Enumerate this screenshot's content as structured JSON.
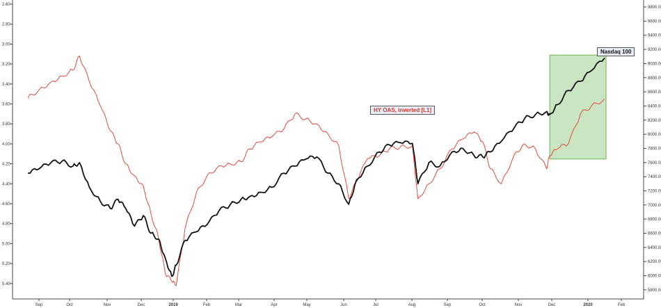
{
  "chart_data": {
    "type": "line",
    "x_ticks": [
      "Sep",
      "Oct",
      "Nov",
      "Dec",
      "2019",
      "Feb",
      "Mar",
      "Apr",
      "May",
      "Jun",
      "Jul",
      "Aug",
      "Sep",
      "Oct",
      "Nov",
      "Dec",
      "2020",
      "Feb"
    ],
    "left_axis": {
      "ticks": [
        "2.60",
        "2.80",
        "3.00",
        "3.20",
        "3.40",
        "3.60",
        "3.80",
        "4.00",
        "4.20",
        "4.40",
        "4.60",
        "4.80",
        "5.00",
        "5.20",
        "5.40"
      ],
      "range": [
        2.6,
        5.52
      ],
      "inverted": true
    },
    "right_axis": {
      "ticks": [
        "9800.00",
        "9600.00",
        "9400.00",
        "9200.00",
        "9000.00",
        "8800.00",
        "8600.00",
        "8400.00",
        "8200.00",
        "8000.00",
        "7800.00",
        "7600.00",
        "7400.00",
        "7200.00",
        "7000.00",
        "6800.00",
        "6600.00",
        "6400.00",
        "6200.00",
        "6000.00",
        "5800.00"
      ],
      "range": [
        5720,
        9840
      ]
    },
    "series": [
      {
        "name": "HY OAS, inverted [L1]",
        "axis": "left",
        "color": "#e8483a",
        "x": [
          "2018-08-15",
          "2018-08-25",
          "2018-09-05",
          "2018-09-15",
          "2018-09-25",
          "2018-10-01",
          "2018-10-10",
          "2018-10-20",
          "2018-10-29",
          "2018-11-05",
          "2018-11-12",
          "2018-11-20",
          "2018-11-28",
          "2018-12-05",
          "2018-12-12",
          "2018-12-18",
          "2018-12-24",
          "2018-12-28",
          "2019-01-05",
          "2019-01-15",
          "2019-01-25",
          "2019-02-05",
          "2019-02-15",
          "2019-02-25",
          "2019-03-05",
          "2019-03-15",
          "2019-03-25",
          "2019-04-05",
          "2019-04-15",
          "2019-04-25",
          "2019-05-05",
          "2019-05-15",
          "2019-05-25",
          "2019-06-03",
          "2019-06-10",
          "2019-06-20",
          "2019-07-01",
          "2019-07-10",
          "2019-07-20",
          "2019-07-31",
          "2019-08-05",
          "2019-08-15",
          "2019-08-25",
          "2019-09-05",
          "2019-09-15",
          "2019-09-25",
          "2019-10-03",
          "2019-10-10",
          "2019-10-20",
          "2019-11-01",
          "2019-11-10",
          "2019-11-20",
          "2019-11-30",
          "2019-12-03",
          "2019-12-10",
          "2019-12-20",
          "2019-12-31",
          "2020-01-10",
          "2020-01-22"
        ],
        "values": [
          3.54,
          3.46,
          3.38,
          3.32,
          3.26,
          3.12,
          3.38,
          3.62,
          3.87,
          4.0,
          4.2,
          4.32,
          4.42,
          4.7,
          4.95,
          5.3,
          5.38,
          5.42,
          4.85,
          4.5,
          4.32,
          4.22,
          4.2,
          4.18,
          4.05,
          3.98,
          3.93,
          3.85,
          3.7,
          3.75,
          3.8,
          3.9,
          4.02,
          4.55,
          4.38,
          4.15,
          4.12,
          4.05,
          4.03,
          4.02,
          4.55,
          4.4,
          4.25,
          4.05,
          3.95,
          3.88,
          3.98,
          4.25,
          4.4,
          4.1,
          4.0,
          4.05,
          4.25,
          4.12,
          4.05,
          4.0,
          3.7,
          3.62,
          3.55
        ]
      },
      {
        "name": "Nasdaq 100",
        "axis": "right",
        "color": "#111111",
        "x": [
          "2018-08-15",
          "2018-08-25",
          "2018-09-05",
          "2018-09-15",
          "2018-09-25",
          "2018-10-01",
          "2018-10-10",
          "2018-10-20",
          "2018-10-29",
          "2018-11-05",
          "2018-11-12",
          "2018-11-20",
          "2018-11-28",
          "2018-12-05",
          "2018-12-12",
          "2018-12-18",
          "2018-12-24",
          "2018-12-28",
          "2019-01-05",
          "2019-01-15",
          "2019-01-25",
          "2019-02-05",
          "2019-02-15",
          "2019-02-25",
          "2019-03-05",
          "2019-03-15",
          "2019-03-25",
          "2019-04-05",
          "2019-04-15",
          "2019-04-25",
          "2019-05-05",
          "2019-05-15",
          "2019-05-25",
          "2019-06-03",
          "2019-06-10",
          "2019-06-20",
          "2019-07-01",
          "2019-07-10",
          "2019-07-20",
          "2019-07-31",
          "2019-08-05",
          "2019-08-15",
          "2019-08-25",
          "2019-09-05",
          "2019-09-15",
          "2019-09-25",
          "2019-10-03",
          "2019-10-10",
          "2019-10-20",
          "2019-11-01",
          "2019-11-10",
          "2019-11-20",
          "2019-11-30",
          "2019-12-03",
          "2019-12-10",
          "2019-12-20",
          "2019-12-31",
          "2020-01-10",
          "2020-01-22"
        ],
        "values": [
          7450,
          7510,
          7600,
          7620,
          7550,
          7600,
          7250,
          7050,
          6950,
          7080,
          6950,
          6700,
          6850,
          6600,
          6520,
          6250,
          5990,
          6150,
          6500,
          6620,
          6720,
          6920,
          7000,
          7080,
          7120,
          7180,
          7250,
          7450,
          7550,
          7650,
          7680,
          7450,
          7300,
          7010,
          7350,
          7550,
          7750,
          7850,
          7880,
          7870,
          7300,
          7600,
          7550,
          7750,
          7800,
          7700,
          7680,
          7750,
          7900,
          8100,
          8220,
          8280,
          8320,
          8280,
          8420,
          8620,
          8750,
          8900,
          9080
        ]
      }
    ],
    "labels": {
      "oas": "HY OAS, inverted [L1]",
      "ndx": "Nasdaq 100"
    },
    "highlight": {
      "x_start": "2019-12-03",
      "x_end": "2020-01-22",
      "color": "#9fcf8e"
    },
    "grid": false,
    "legend": "none"
  }
}
